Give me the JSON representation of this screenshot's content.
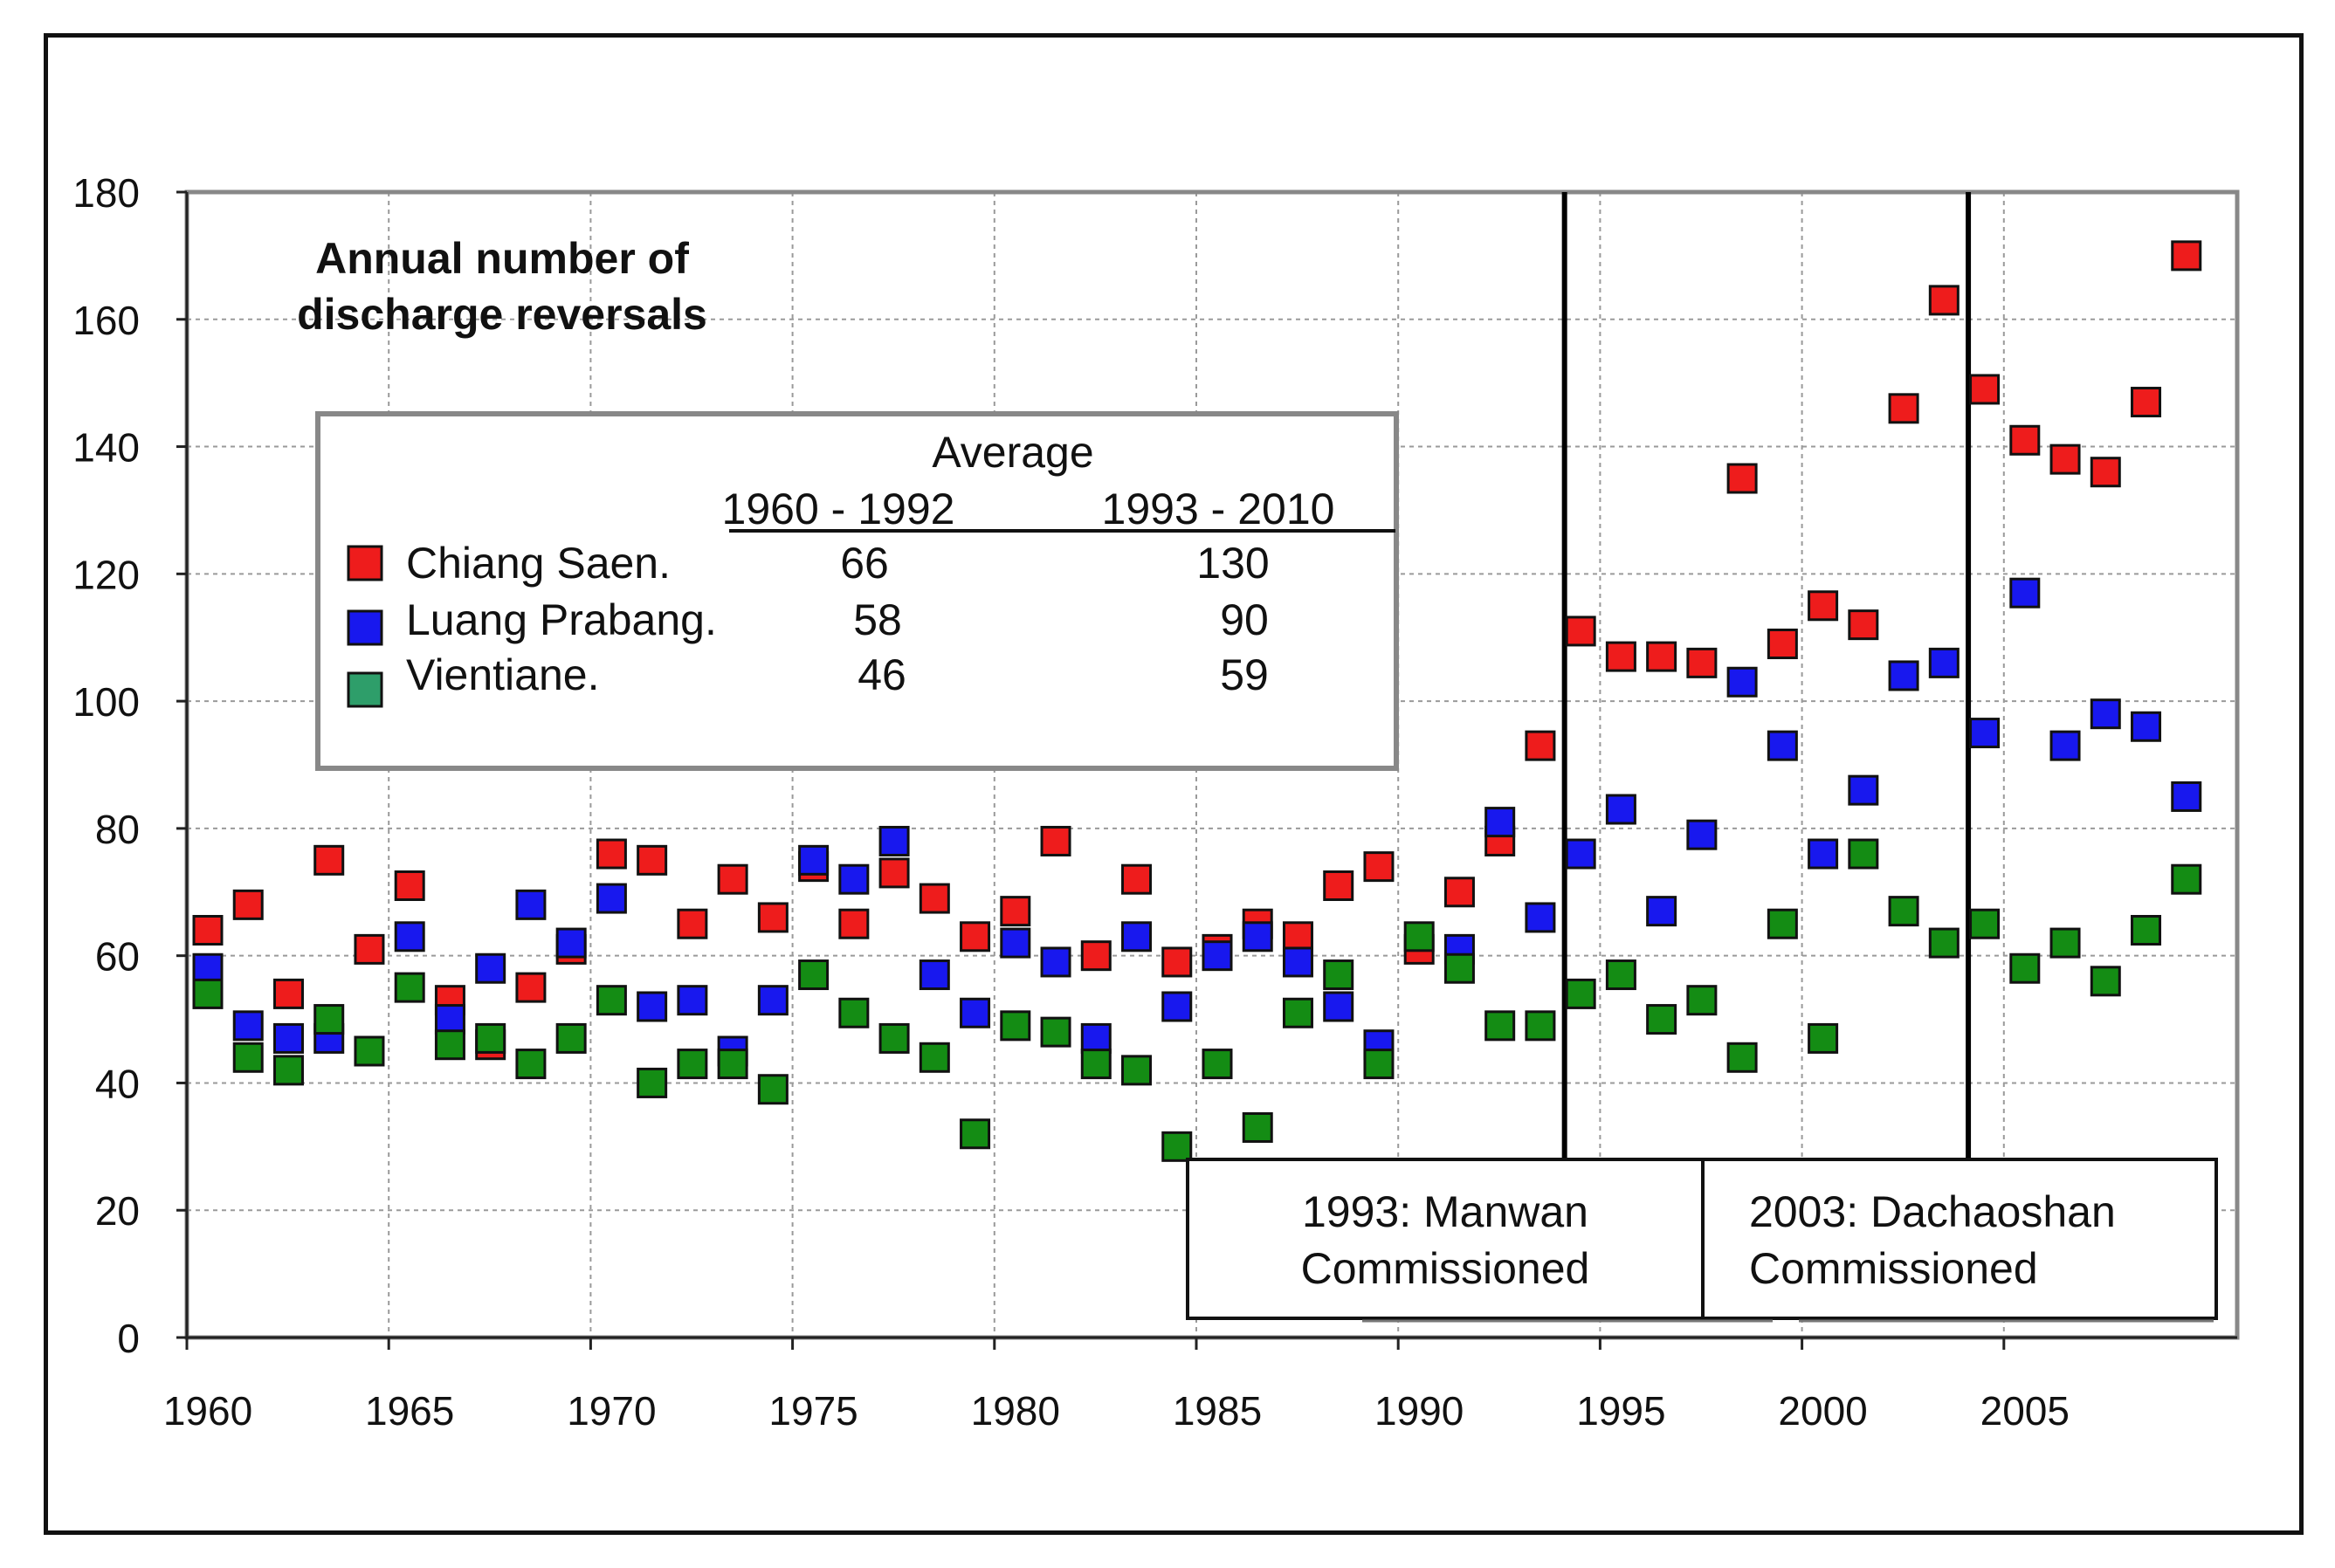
{
  "chart_data": {
    "type": "scatter",
    "title": "Annual number of\ndischarge reversals",
    "title_lines": [
      "Annual number of",
      "discharge reversals"
    ],
    "xlim": [
      1960,
      2010
    ],
    "ylim": [
      0,
      180
    ],
    "x_ticks": [
      1960,
      1965,
      1970,
      1975,
      1980,
      1985,
      1990,
      1995,
      2000,
      2005
    ],
    "y_ticks": [
      0,
      20,
      40,
      60,
      80,
      100,
      120,
      140,
      160,
      180
    ],
    "grid": true,
    "legend": {
      "header": "Average",
      "period1": "1960 - 1992",
      "period2": "1993 - 2010",
      "entries": [
        {
          "name": "Chiang Saen.",
          "avg1": "66",
          "avg2": "130"
        },
        {
          "name": "Luang Prabang.",
          "avg1": "58",
          "avg2": "90"
        },
        {
          "name": "Vientiane.",
          "avg1": "46",
          "avg2": "59"
        }
      ]
    },
    "events": [
      {
        "x": 1993.6,
        "line1": "1993: Manwan",
        "line2": "Commissioned"
      },
      {
        "x": 2003.6,
        "line1": "2003: Dachaoshan",
        "line2": "Commissioned"
      }
    ],
    "colors": {
      "Chiang Saen": "#ee1c1c",
      "Luang Prabang": "#1818ee",
      "Vientiane": "#148c14",
      "Vientiane legend": "#2e9e6a"
    },
    "series": [
      {
        "name": "Chiang Saen.",
        "color": "#ee1c1c",
        "x": [
          1960,
          1961,
          1962,
          1963,
          1964,
          1965,
          1966,
          1967,
          1968,
          1969,
          1970,
          1971,
          1972,
          1973,
          1974,
          1975,
          1976,
          1977,
          1978,
          1979,
          1980,
          1981,
          1982,
          1983,
          1984,
          1985,
          1986,
          1987,
          1988,
          1989,
          1990,
          1991,
          1992,
          1993,
          1994,
          1995,
          1996,
          1997,
          1998,
          1999,
          2000,
          2001,
          2002,
          2003,
          2004,
          2005,
          2006,
          2007,
          2008,
          2009
        ],
        "y": [
          64,
          68,
          54,
          75,
          61,
          71,
          53,
          46,
          55,
          61,
          76,
          75,
          65,
          72,
          66,
          74,
          65,
          73,
          69,
          63,
          67,
          78,
          60,
          72,
          59,
          61,
          65,
          63,
          71,
          74,
          61,
          70,
          78,
          93,
          111,
          107,
          107,
          106,
          135,
          109,
          115,
          112,
          146,
          163,
          149,
          141,
          138,
          136,
          147,
          170
        ]
      },
      {
        "name": "Luang Prabang.",
        "color": "#1818ee",
        "x": [
          1960,
          1961,
          1962,
          1963,
          1965,
          1966,
          1967,
          1968,
          1969,
          1970,
          1971,
          1972,
          1973,
          1974,
          1975,
          1976,
          1977,
          1978,
          1979,
          1980,
          1981,
          1982,
          1983,
          1984,
          1985,
          1986,
          1987,
          1988,
          1989,
          1991,
          1992,
          1993,
          1994,
          1995,
          1996,
          1997,
          1998,
          1999,
          2000,
          2001,
          2002,
          2003,
          2004,
          2005,
          2006,
          2007,
          2008,
          2009
        ],
        "y": [
          58,
          49,
          47,
          47,
          63,
          50,
          58,
          68,
          62,
          69,
          52,
          53,
          45,
          53,
          75,
          72,
          78,
          57,
          51,
          62,
          59,
          47,
          63,
          52,
          60,
          63,
          59,
          52,
          46,
          61,
          81,
          66,
          76,
          83,
          67,
          79,
          103,
          93,
          76,
          86,
          104,
          106,
          95,
          117,
          93,
          98,
          96,
          85
        ]
      },
      {
        "name": "Vientiane.",
        "color": "#148c14",
        "x": [
          1960,
          1961,
          1962,
          1963,
          1964,
          1965,
          1966,
          1967,
          1968,
          1969,
          1970,
          1971,
          1972,
          1973,
          1974,
          1975,
          1976,
          1977,
          1978,
          1979,
          1980,
          1981,
          1982,
          1983,
          1984,
          1985,
          1986,
          1987,
          1988,
          1989,
          1990,
          1991,
          1992,
          1993,
          1994,
          1995,
          1996,
          1997,
          1998,
          1999,
          2000,
          2001,
          2002,
          2003,
          2004,
          2005,
          2006,
          2007,
          2008,
          2009
        ],
        "y": [
          54,
          44,
          42,
          50,
          45,
          55,
          46,
          47,
          43,
          47,
          53,
          40,
          43,
          43,
          39,
          57,
          51,
          47,
          44,
          32,
          49,
          48,
          43,
          42,
          30,
          43,
          33,
          51,
          57,
          43,
          63,
          58,
          49,
          49,
          54,
          57,
          50,
          53,
          44,
          65,
          47,
          76,
          67,
          62,
          65,
          58,
          62,
          56,
          64,
          72
        ]
      }
    ]
  }
}
